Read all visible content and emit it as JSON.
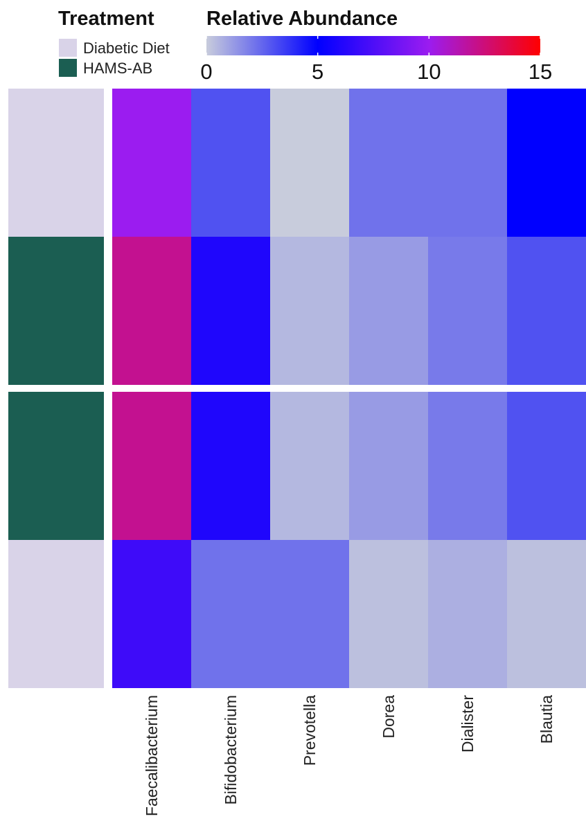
{
  "chart_data": {
    "type": "heatmap",
    "title": "",
    "xlabel": "",
    "ylabel": "",
    "columns": [
      "Faecalibacterium",
      "Bifidobacterium",
      "Prevotella",
      "Dorea",
      "Dialister",
      "Blautia"
    ],
    "rows": [
      {
        "treatment": "Diabetic Diet",
        "values": [
          10.0,
          3.0,
          0.0,
          2.2,
          2.2,
          5.0
        ]
      },
      {
        "treatment": "HAMS-AB",
        "values": [
          12.0,
          6.0,
          0.5,
          1.2,
          2.0,
          3.0
        ]
      },
      {
        "treatment": "HAMS-AB",
        "values": [
          12.0,
          6.0,
          0.5,
          1.2,
          2.0,
          3.0
        ]
      },
      {
        "treatment": "Diabetic Diet",
        "values": [
          7.0,
          2.2,
          2.2,
          0.3,
          0.7,
          0.3
        ]
      }
    ],
    "row_split_after": 1,
    "color_scale": {
      "title": "Relative Abundance",
      "min": 0,
      "max": 15,
      "ticks": [
        0,
        5,
        10,
        15
      ],
      "stops": [
        {
          "value": 0,
          "color": "#c8ccdc"
        },
        {
          "value": 5,
          "color": "#0000ff"
        },
        {
          "value": 10,
          "color": "#9b1cf0"
        },
        {
          "value": 15,
          "color": "#ff0000"
        }
      ]
    },
    "annotation": {
      "title": "Treatment",
      "levels": [
        {
          "label": "Diabetic Diet",
          "color": "#d9d3e8"
        },
        {
          "label": "HAMS-AB",
          "color": "#1b5e52"
        }
      ]
    },
    "grid": false,
    "legend_position": "top"
  }
}
